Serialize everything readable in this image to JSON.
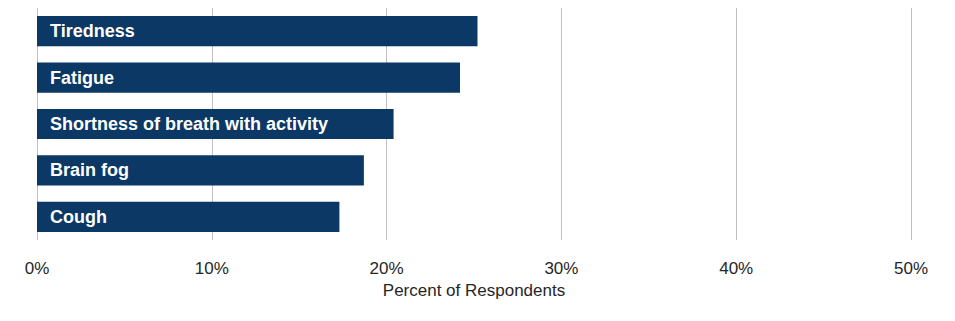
{
  "chart_data": {
    "type": "bar",
    "orientation": "horizontal",
    "x_label": "Percent of Respondents",
    "categories": [
      "Tiredness",
      "Fatigue",
      "Shortness of breath with activity",
      "Brain fog",
      "Cough"
    ],
    "values": [
      25.2,
      24.2,
      20.4,
      18.7,
      17.3
    ],
    "color": "#0b3864",
    "xlim": [
      0,
      50
    ],
    "xticks": [
      {
        "value": 0,
        "label": "0%"
      },
      {
        "value": 10,
        "label": "10%"
      },
      {
        "value": 20,
        "label": "20%"
      },
      {
        "value": 30,
        "label": "30%"
      },
      {
        "value": 40,
        "label": "40%"
      },
      {
        "value": 50,
        "label": "50%"
      }
    ],
    "grid": true,
    "data_labels": false
  }
}
